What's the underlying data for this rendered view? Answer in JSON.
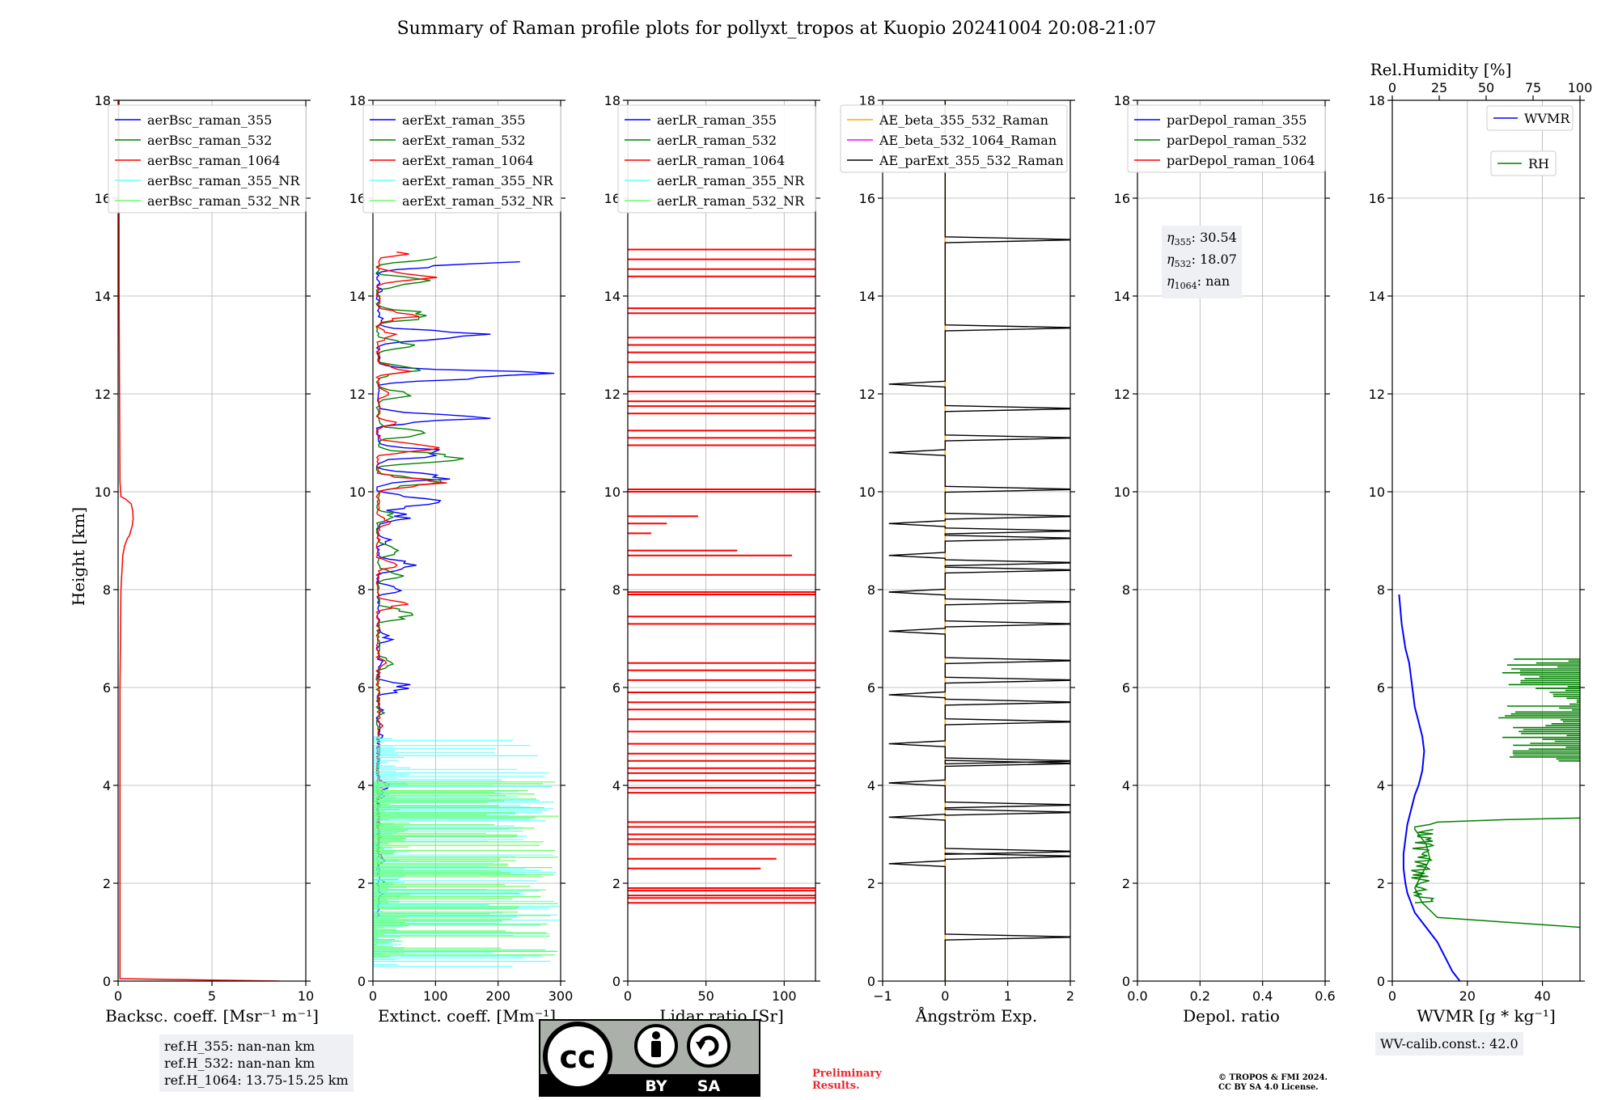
{
  "title": "Summary of Raman profile plots for pollyxt_tropos at Kuopio 20241004 20:08-21:07",
  "ylabel": "Height [km]",
  "colors": {
    "c355": "#0000ff",
    "c532": "#008000",
    "c1064": "#ff0000",
    "c355nr": "#66ffff",
    "c532nr": "#66ff66",
    "orange": "#ffa500",
    "magenta": "#ff00ff",
    "black": "#000000"
  },
  "chart_data": [
    {
      "type": "line",
      "xlabel": "Backsc. coeff. [Msr⁻¹ m⁻¹]",
      "xlim": [
        0,
        10
      ],
      "xticks": [
        0,
        5,
        10
      ],
      "ylim": [
        0,
        18
      ],
      "yticks": [
        0,
        2,
        4,
        6,
        8,
        10,
        12,
        14,
        16,
        18
      ],
      "legend": [
        "aerBsc_raman_355",
        "aerBsc_raman_532",
        "aerBsc_raman_1064",
        "aerBsc_raman_355_NR",
        "aerBsc_raman_532_NR"
      ],
      "series": [
        {
          "name": "aerBsc_raman_1064",
          "x": [
            8.6,
            0.1,
            0.1,
            0.1,
            0.15,
            0.25,
            0.35,
            0.5,
            0.6,
            0.75,
            0.8,
            0.78,
            0.7,
            0.4,
            0.15,
            0.1,
            0.05,
            0.05
          ],
          "y": [
            0.0,
            0.05,
            2.0,
            6.0,
            8.0,
            8.7,
            8.9,
            9.05,
            9.1,
            9.3,
            9.45,
            9.6,
            9.75,
            9.85,
            9.9,
            10.2,
            14.0,
            18.0
          ]
        }
      ]
    },
    {
      "type": "line",
      "xlabel": "Extinct. coeff. [Mm⁻¹]",
      "xlim": [
        0,
        300
      ],
      "xticks": [
        0,
        100,
        200,
        300
      ],
      "ylim": [
        0,
        18
      ],
      "yticks": [
        0,
        2,
        4,
        6,
        8,
        10,
        12,
        14,
        16,
        18
      ],
      "legend": [
        "aerExt_raman_355",
        "aerExt_raman_532",
        "aerExt_raman_1064",
        "aerExt_raman_355_NR",
        "aerExt_raman_532_NR"
      ],
      "series": [
        {
          "name": "aerExt_raman_355",
          "peaks": [
            [
              1.3,
              0
            ],
            [
              1.8,
              15
            ],
            [
              2.5,
              20
            ],
            [
              3.0,
              15
            ],
            [
              3.8,
              20
            ],
            [
              4.0,
              28
            ],
            [
              4.5,
              10
            ],
            [
              5.0,
              18
            ],
            [
              5.5,
              20
            ],
            [
              6.0,
              70
            ],
            [
              6.5,
              20
            ],
            [
              7.0,
              30
            ],
            [
              8.0,
              40
            ],
            [
              8.5,
              85
            ],
            [
              9.0,
              30
            ],
            [
              9.5,
              60
            ],
            [
              9.8,
              180
            ],
            [
              10.3,
              120
            ],
            [
              10.8,
              150
            ],
            [
              11.5,
              170
            ],
            [
              12.4,
              265
            ],
            [
              13.2,
              180
            ],
            [
              13.5,
              20
            ],
            [
              14.1,
              15
            ],
            [
              14.7,
              240
            ]
          ]
        },
        {
          "name": "aerExt_raman_532",
          "peaks": [
            [
              2.0,
              20
            ],
            [
              3.0,
              10
            ],
            [
              4.5,
              10
            ],
            [
              5.5,
              20
            ],
            [
              6.5,
              40
            ],
            [
              7.5,
              95
            ],
            [
              8.3,
              50
            ],
            [
              8.8,
              60
            ],
            [
              9.5,
              40
            ],
            [
              10.2,
              110
            ],
            [
              10.7,
              170
            ],
            [
              11.2,
              90
            ],
            [
              12.0,
              60
            ],
            [
              12.5,
              85
            ],
            [
              13.0,
              60
            ],
            [
              13.6,
              120
            ],
            [
              14.3,
              90
            ],
            [
              14.8,
              110
            ]
          ]
        },
        {
          "name": "aerExt_raman_1064",
          "peaks": [
            [
              2.5,
              15
            ],
            [
              3.3,
              10
            ],
            [
              4.0,
              20
            ],
            [
              5.2,
              15
            ],
            [
              6.5,
              20
            ],
            [
              7.7,
              50
            ],
            [
              8.5,
              40
            ],
            [
              9.4,
              30
            ],
            [
              10.2,
              120
            ],
            [
              10.9,
              100
            ],
            [
              11.4,
              40
            ],
            [
              12.0,
              30
            ],
            [
              12.5,
              60
            ],
            [
              13.2,
              40
            ],
            [
              13.6,
              70
            ],
            [
              14.4,
              100
            ],
            [
              14.9,
              60
            ]
          ]
        },
        {
          "name": "aerExt_raman_355_NR",
          "band": [
            0.3,
            5.0
          ],
          "max": 300
        },
        {
          "name": "aerExt_raman_532_NR",
          "band": [
            0.5,
            4.1
          ],
          "max": 300
        }
      ]
    },
    {
      "type": "line",
      "xlabel": "Lidar ratio [Sr]",
      "xlim": [
        0,
        120
      ],
      "xticks": [
        0,
        50,
        100
      ],
      "ylim": [
        0,
        18
      ],
      "yticks": [
        0,
        2,
        4,
        6,
        8,
        10,
        12,
        14,
        16,
        18
      ],
      "legend": [
        "aerLR_raman_355",
        "aerLR_raman_532",
        "aerLR_raman_1064",
        "aerLR_raman_355_NR",
        "aerLR_raman_532_NR"
      ],
      "series": [
        {
          "name": "aerLR_raman_1064",
          "rows": [
            1.6,
            1.7,
            1.75,
            1.85,
            1.9,
            2.3,
            2.5,
            2.8,
            2.9,
            3.0,
            3.15,
            3.25,
            3.85,
            3.95,
            4.1,
            4.25,
            4.35,
            4.5,
            4.65,
            4.85,
            5.1,
            5.35,
            5.55,
            5.7,
            5.9,
            6.15,
            6.35,
            6.5,
            7.3,
            7.45,
            7.9,
            7.95,
            8.3,
            8.7,
            8.8,
            9.15,
            9.35,
            9.5,
            10.0,
            10.05,
            10.95,
            11.1,
            11.25,
            11.6,
            11.75,
            11.85,
            12.05,
            12.35,
            12.65,
            12.85,
            13.0,
            13.15,
            13.65,
            13.75,
            14.4,
            14.55,
            14.75,
            14.95
          ],
          "short": {
            "8.7": 105,
            "8.8": 70,
            "9.15": 15,
            "9.35": 25,
            "9.5": 45,
            "2.3": 85,
            "2.5": 95
          }
        }
      ]
    },
    {
      "type": "line",
      "xlabel": "Ångström Exp.",
      "xlim": [
        -1,
        2
      ],
      "xticks": [
        -1,
        0,
        1,
        2
      ],
      "ylim": [
        0,
        18
      ],
      "yticks": [
        0,
        2,
        4,
        6,
        8,
        10,
        12,
        14,
        16,
        18
      ],
      "legend": [
        "AE_beta_355_532_Raman",
        "AE_beta_532_1064_Raman",
        "AE_parExt_355_532_Raman"
      ],
      "series": [
        {
          "name": "AE_beta_355_532_Raman",
          "x": [
            0,
            0
          ],
          "y": [
            0,
            18
          ]
        },
        {
          "name": "AE_parExt_355_532_Raman",
          "rows": [
            0.9,
            2.4,
            2.55,
            2.65,
            3.35,
            3.45,
            3.6,
            4.05,
            4.45,
            4.5,
            4.85,
            5.3,
            5.7,
            5.85,
            6.15,
            6.55,
            7.15,
            7.3,
            7.75,
            7.95,
            8.4,
            8.55,
            8.7,
            9.05,
            9.2,
            9.35,
            9.5,
            10.05,
            10.8,
            11.1,
            11.7,
            12.2,
            13.35,
            15.15
          ]
        }
      ]
    },
    {
      "type": "line",
      "xlabel": "Depol. ratio",
      "xlim": [
        0.0,
        0.6
      ],
      "xticks": [
        "0.0",
        "0.2",
        "0.4",
        "0.6"
      ],
      "ylim": [
        0,
        18
      ],
      "yticks": [
        0,
        2,
        4,
        6,
        8,
        10,
        12,
        14,
        16,
        18
      ],
      "legend": [
        "parDepol_raman_355",
        "parDepol_raman_532",
        "parDepol_raman_1064"
      ],
      "series": []
    },
    {
      "type": "line",
      "xlabel": "WVMR [g * kg⁻¹]",
      "xlabel_top": "Rel.Humidity [%]",
      "xlim": [
        0,
        50
      ],
      "xticks": [
        0,
        20,
        40
      ],
      "xlim_top": [
        0,
        100
      ],
      "xticks_top": [
        0,
        25,
        50,
        75,
        100
      ],
      "ylim": [
        0,
        18
      ],
      "yticks": [
        0,
        2,
        4,
        6,
        8,
        10,
        12,
        14,
        16,
        18
      ],
      "legend": [
        "WVMR",
        "RH"
      ],
      "series": [
        {
          "name": "WVMR",
          "x": [
            18,
            16,
            14,
            12,
            10,
            8,
            6,
            5,
            4,
            3.5,
            3,
            3,
            3.5,
            4,
            5,
            6,
            7,
            8,
            8.5,
            8,
            7,
            6,
            5.5,
            5,
            4.5,
            3.5,
            2.5,
            1.8
          ],
          "y": [
            0,
            0.2,
            0.5,
            0.8,
            1.0,
            1.2,
            1.4,
            1.6,
            1.8,
            2.0,
            2.3,
            2.6,
            2.9,
            3.2,
            3.5,
            3.8,
            4.0,
            4.3,
            4.7,
            5.0,
            5.3,
            5.6,
            5.9,
            6.2,
            6.5,
            6.8,
            7.3,
            7.9
          ]
        },
        {
          "name": "RH",
          "x": [
            50,
            12,
            8,
            6,
            8,
            10,
            9,
            7,
            6,
            6,
            10,
            12,
            30,
            60,
            100
          ],
          "y": [
            1.1,
            1.3,
            1.6,
            1.9,
            2.2,
            2.5,
            2.8,
            3.0,
            3.1,
            3.15,
            3.2,
            3.25,
            3.3,
            3.35,
            3.4
          ]
        }
      ],
      "rh_upper": {
        "y0": 4.5,
        "y1": 6.6,
        "max": 100
      }
    }
  ],
  "annotations": {
    "refH": [
      "ref.H_355: nan-nan km",
      "ref.H_532: nan-nan km",
      "ref.H_1064: 13.75-15.25 km"
    ],
    "eta_355": ": 30.54",
    "eta_532": ": 18.07",
    "eta_1064": ": nan",
    "eta_355_sub": "355",
    "eta_532_sub": "532",
    "eta_1064_sub": "1064",
    "wv_calib": "WV-calib.const.: 42.0",
    "preliminary": [
      "Preliminary",
      "Results."
    ],
    "copyright": [
      "© TROPOS & FMI 2024.",
      "CC BY SA 4.0 License."
    ],
    "badge": {
      "cc": "cc",
      "by": "BY",
      "sa": "SA"
    }
  }
}
